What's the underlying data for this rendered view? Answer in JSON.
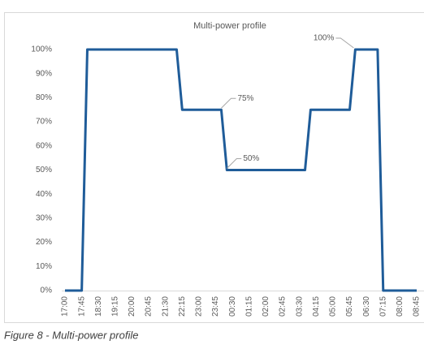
{
  "chart_data": {
    "type": "line",
    "title": "Multi-power profile",
    "caption": "Figure 8 - Multi-power profile",
    "categories": [
      "17:00",
      null,
      null,
      "17:45",
      null,
      null,
      "18:30",
      null,
      null,
      "19:15",
      null,
      null,
      "20:00",
      null,
      null,
      "20:45",
      null,
      null,
      "21:30",
      null,
      null,
      "22:15",
      null,
      null,
      "23:00",
      null,
      null,
      "23:45",
      null,
      null,
      "00:30",
      null,
      null,
      "01:15",
      null,
      null,
      "02:00",
      null,
      null,
      "02:45",
      null,
      null,
      "03:30",
      null,
      null,
      "04:15",
      null,
      null,
      "05:00",
      null,
      null,
      "05:45",
      null,
      null,
      "06:30",
      null,
      null,
      "07:15",
      null,
      null,
      "08:00",
      null,
      null,
      "08:45"
    ],
    "values": [
      0,
      0,
      0,
      0,
      100,
      100,
      100,
      100,
      100,
      100,
      100,
      100,
      100,
      100,
      100,
      100,
      100,
      100,
      100,
      100,
      100,
      75,
      75,
      75,
      75,
      75,
      75,
      75,
      75,
      50,
      50,
      50,
      50,
      50,
      50,
      50,
      50,
      50,
      50,
      50,
      50,
      50,
      50,
      50,
      75,
      75,
      75,
      75,
      75,
      75,
      75,
      75,
      100,
      100,
      100,
      100,
      100,
      0,
      0,
      0,
      0,
      0,
      0,
      0
    ],
    "value_labels": [
      null,
      null,
      null,
      null,
      null,
      null,
      null,
      null,
      null,
      null,
      null,
      null,
      null,
      null,
      null,
      null,
      null,
      null,
      null,
      null,
      null,
      null,
      null,
      null,
      null,
      null,
      null,
      null,
      "75%",
      "50%",
      null,
      null,
      null,
      null,
      null,
      null,
      null,
      null,
      null,
      null,
      null,
      null,
      null,
      null,
      null,
      null,
      null,
      null,
      null,
      null,
      null,
      null,
      "100%",
      null,
      null,
      null,
      null,
      null,
      null,
      null,
      null,
      null,
      null,
      null
    ],
    "color": "#1f5c99",
    "ylim": [
      0,
      100
    ],
    "yticks": [
      {
        "value": 0,
        "label": "0%"
      },
      {
        "value": 10,
        "label": "10%"
      },
      {
        "value": 20,
        "label": "20%"
      },
      {
        "value": 30,
        "label": "30%"
      },
      {
        "value": 40,
        "label": "40%"
      },
      {
        "value": 50,
        "label": "50%"
      },
      {
        "value": 60,
        "label": "60%"
      },
      {
        "value": 70,
        "label": "70%"
      },
      {
        "value": 80,
        "label": "80%"
      },
      {
        "value": 90,
        "label": "90%"
      },
      {
        "value": 100,
        "label": "100%"
      }
    ],
    "grid": false
  }
}
